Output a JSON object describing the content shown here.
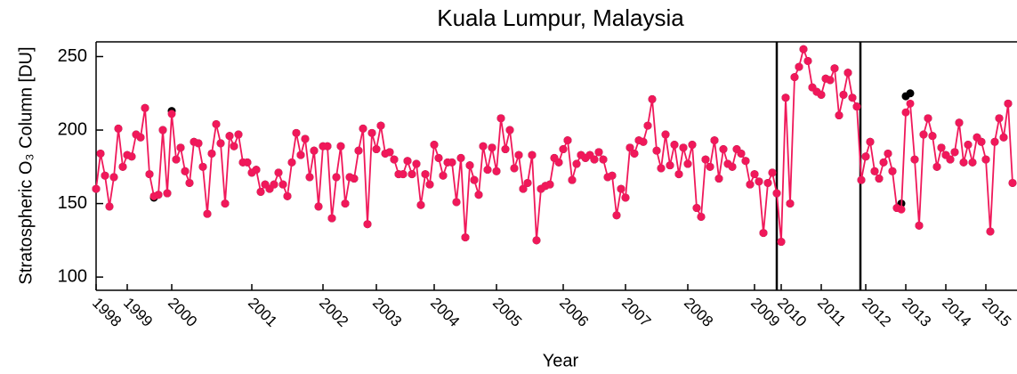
{
  "chart_data": {
    "type": "line",
    "title": "Kuala Lumpur, Malaysia",
    "x_label": "Year",
    "y_label": "Stratospheric O₃ Column [DU]",
    "categories": [
      "1998",
      null,
      null,
      null,
      null,
      null,
      null,
      "1999",
      null,
      null,
      null,
      null,
      null,
      null,
      null,
      null,
      null,
      "2000",
      null,
      null,
      null,
      null,
      null,
      null,
      null,
      null,
      null,
      null,
      null,
      null,
      null,
      null,
      null,
      null,
      null,
      "2001",
      null,
      null,
      null,
      null,
      null,
      null,
      null,
      null,
      null,
      null,
      null,
      null,
      null,
      null,
      null,
      "2002",
      null,
      null,
      null,
      null,
      null,
      null,
      null,
      null,
      null,
      null,
      null,
      "2003",
      null,
      null,
      null,
      null,
      null,
      null,
      null,
      null,
      null,
      null,
      null,
      null,
      "2004",
      null,
      null,
      null,
      null,
      null,
      null,
      null,
      null,
      null,
      null,
      null,
      null,
      null,
      "2005",
      null,
      null,
      null,
      null,
      null,
      null,
      null,
      null,
      null,
      null,
      null,
      null,
      null,
      null,
      "2006",
      null,
      null,
      null,
      null,
      null,
      null,
      null,
      null,
      null,
      null,
      null,
      null,
      null,
      "2007",
      null,
      null,
      null,
      null,
      null,
      null,
      null,
      null,
      null,
      null,
      null,
      null,
      null,
      "2008",
      null,
      null,
      null,
      null,
      null,
      null,
      null,
      null,
      null,
      null,
      null,
      null,
      null,
      null,
      "2009",
      null,
      null,
      null,
      null,
      null,
      "2010",
      null,
      null,
      null,
      null,
      null,
      null,
      null,
      null,
      "2011",
      null,
      null,
      null,
      null,
      null,
      null,
      null,
      null,
      null,
      "2012",
      null,
      null,
      null,
      null,
      null,
      null,
      null,
      null,
      "2013",
      null,
      null,
      null,
      null,
      null,
      null,
      null,
      null,
      "2014",
      null,
      null,
      null,
      null,
      null,
      null,
      null,
      null,
      "2015",
      null,
      null,
      null,
      null,
      null,
      null
    ],
    "series": [
      {
        "color": "#000000",
        "line": false,
        "values": [
          160,
          184,
          169,
          148,
          168,
          201,
          175,
          183,
          182,
          197,
          195,
          215,
          170,
          154,
          156,
          200,
          157,
          213,
          180,
          188,
          172,
          164,
          192,
          191,
          175,
          143,
          184,
          204,
          191,
          150,
          196,
          189,
          197,
          178,
          178,
          171,
          173,
          158,
          163,
          160,
          163,
          171,
          163,
          155,
          178,
          198,
          183,
          194,
          168,
          186,
          148,
          189,
          189,
          140,
          168,
          189,
          150,
          168,
          167,
          186,
          201,
          136,
          198,
          187,
          203,
          184,
          185,
          180,
          170,
          170,
          179,
          170,
          177,
          149,
          170,
          163,
          190,
          181,
          169,
          178,
          178,
          151,
          181,
          127,
          176,
          166,
          156,
          189,
          173,
          188,
          172,
          208,
          187,
          200,
          174,
          183,
          160,
          164,
          183,
          125,
          160,
          162,
          163,
          181,
          178,
          187,
          193,
          166,
          177,
          183,
          181,
          183,
          180,
          185,
          180,
          168,
          169,
          142,
          160,
          154,
          188,
          184,
          193,
          192,
          203,
          221,
          186,
          174,
          197,
          176,
          190,
          170,
          188,
          177,
          190,
          147,
          141,
          180,
          175,
          193,
          167,
          187,
          177,
          175,
          187,
          184,
          179,
          163,
          170,
          165,
          130,
          164,
          171,
          157,
          124,
          222,
          150,
          236,
          243,
          255,
          247,
          229,
          226,
          224,
          235,
          234,
          242,
          210,
          224,
          239,
          222,
          216,
          166,
          182,
          192,
          172,
          167,
          178,
          184,
          172,
          147,
          150,
          223,
          225,
          180,
          135,
          197,
          208,
          196,
          175,
          188,
          183,
          180,
          185,
          205,
          178,
          190,
          178,
          195,
          192,
          180,
          131,
          192,
          208,
          195,
          218,
          164
        ]
      },
      {
        "color": "#f0185a",
        "line": true,
        "values": [
          160,
          184,
          169,
          148,
          168,
          201,
          175,
          183,
          182,
          197,
          195,
          215,
          170,
          155,
          156,
          200,
          157,
          211,
          180,
          188,
          172,
          164,
          192,
          191,
          175,
          143,
          184,
          204,
          191,
          150,
          196,
          189,
          197,
          178,
          178,
          171,
          173,
          158,
          163,
          160,
          163,
          171,
          163,
          155,
          178,
          198,
          183,
          194,
          168,
          186,
          148,
          189,
          189,
          140,
          168,
          189,
          150,
          168,
          167,
          186,
          201,
          136,
          198,
          187,
          203,
          184,
          185,
          180,
          170,
          170,
          179,
          170,
          177,
          149,
          170,
          163,
          190,
          181,
          169,
          178,
          178,
          151,
          181,
          127,
          176,
          166,
          156,
          189,
          173,
          188,
          172,
          208,
          187,
          200,
          174,
          183,
          160,
          164,
          183,
          125,
          160,
          162,
          163,
          181,
          178,
          187,
          193,
          166,
          177,
          183,
          181,
          183,
          180,
          185,
          180,
          168,
          169,
          142,
          160,
          154,
          188,
          184,
          193,
          192,
          203,
          221,
          186,
          174,
          197,
          176,
          190,
          170,
          188,
          177,
          190,
          147,
          141,
          180,
          175,
          193,
          167,
          187,
          177,
          175,
          187,
          184,
          179,
          163,
          170,
          165,
          130,
          164,
          171,
          157,
          124,
          222,
          150,
          236,
          243,
          255,
          247,
          229,
          226,
          224,
          235,
          234,
          242,
          210,
          224,
          239,
          222,
          216,
          166,
          182,
          192,
          172,
          167,
          178,
          184,
          172,
          147,
          146,
          212,
          218,
          180,
          135,
          197,
          208,
          196,
          175,
          188,
          183,
          180,
          185,
          205,
          178,
          190,
          178,
          195,
          192,
          180,
          131,
          192,
          208,
          195,
          218,
          164
        ]
      }
    ],
    "ylim": [
      91,
      260
    ],
    "yticks": [
      100,
      150,
      200,
      250
    ]
  }
}
